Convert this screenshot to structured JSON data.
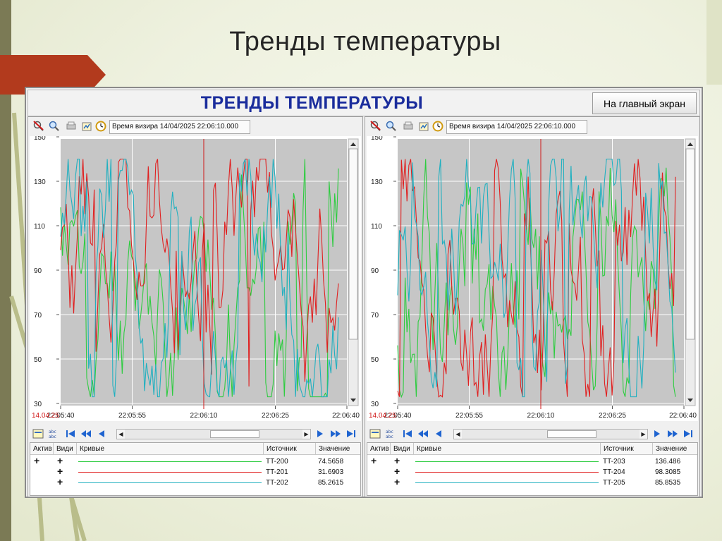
{
  "slide": {
    "title": "Тренды температуры"
  },
  "header": {
    "title": "ТРЕНДЫ ТЕМПЕРАТУРЫ",
    "home_button": "На главный экран"
  },
  "panels": [
    {
      "time_label": "Время визира 14/04/2025 22:06:10.000",
      "date_label": "14.04.25",
      "x_ticks": [
        "22:05:40",
        "22:05:55",
        "22:06:10",
        "22:06:25",
        "22:06:40"
      ],
      "y_ticks": [
        "150",
        "130",
        "110",
        "90",
        "70",
        "50",
        "30"
      ],
      "legend_headers": {
        "active": "Актив",
        "visible": "Види",
        "curves": "Кривые",
        "source": "Источник",
        "value": "Значение"
      },
      "rows": [
        {
          "active": "+",
          "visible": "+",
          "source": "TT-200",
          "value": "74.5658",
          "color": "#2ecc40"
        },
        {
          "active": "",
          "visible": "+",
          "source": "TT-201",
          "value": "31.6903",
          "color": "#e02020"
        },
        {
          "active": "",
          "visible": "+",
          "source": "TT-202",
          "value": "85.2615",
          "color": "#20b0c0"
        }
      ]
    },
    {
      "time_label": "Время визира 14/04/2025 22:06:10.000",
      "date_label": "14.04.25",
      "x_ticks": [
        "22:05:40",
        "22:05:55",
        "22:06:10",
        "22:06:25",
        "22:06:40"
      ],
      "y_ticks": [
        "150",
        "130",
        "110",
        "90",
        "70",
        "50",
        "30"
      ],
      "legend_headers": {
        "active": "Актив",
        "visible": "Види",
        "curves": "Кривые",
        "source": "Источник",
        "value": "Значение"
      },
      "rows": [
        {
          "active": "+",
          "visible": "+",
          "source": "TT-203",
          "value": "136.486",
          "color": "#2ecc40"
        },
        {
          "active": "",
          "visible": "+",
          "source": "TT-204",
          "value": "98.3085",
          "color": "#e02020"
        },
        {
          "active": "",
          "visible": "+",
          "source": "TT-205",
          "value": "85.8535",
          "color": "#20b0c0"
        }
      ]
    }
  ],
  "chart_data": [
    {
      "type": "line",
      "ylim": [
        30,
        150
      ],
      "x_range": [
        "22:05:40",
        "22:06:40"
      ],
      "cursor_x": "22:06:10",
      "grid": true,
      "series": [
        {
          "name": "TT-200",
          "color": "#2ecc40",
          "seed": 11
        },
        {
          "name": "TT-201",
          "color": "#e02020",
          "seed": 23
        },
        {
          "name": "TT-202",
          "color": "#20b0c0",
          "seed": 37
        }
      ]
    },
    {
      "type": "line",
      "ylim": [
        30,
        150
      ],
      "x_range": [
        "22:05:40",
        "22:06:40"
      ],
      "cursor_x": "22:06:10",
      "grid": true,
      "series": [
        {
          "name": "TT-203",
          "color": "#2ecc40",
          "seed": 53
        },
        {
          "name": "TT-204",
          "color": "#e02020",
          "seed": 71
        },
        {
          "name": "TT-205",
          "color": "#20b0c0",
          "seed": 89
        }
      ]
    }
  ]
}
